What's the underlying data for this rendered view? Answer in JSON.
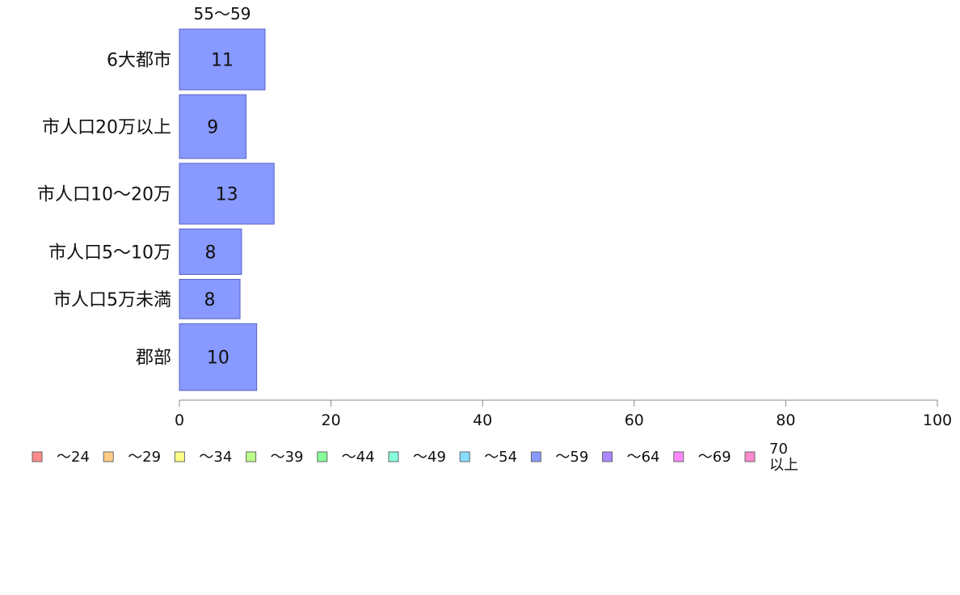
{
  "chart_data": {
    "type": "bar",
    "orientation": "horizontal",
    "stacked": true,
    "categories": [
      "6大都市",
      "市人口20万以上",
      "市人口10〜20万",
      "市人口5〜10万",
      "市人口5万未満",
      "郡部"
    ],
    "series": [
      {
        "name": "〜24",
        "color": "#ff8a8a",
        "values": [
          0,
          0,
          0,
          0,
          0,
          0
        ]
      },
      {
        "name": "〜29",
        "color": "#ffcc88",
        "values": [
          0,
          0,
          0,
          0,
          0,
          0
        ]
      },
      {
        "name": "〜34",
        "color": "#ffff88",
        "values": [
          0,
          0,
          0,
          0,
          0,
          0
        ]
      },
      {
        "name": "〜39",
        "color": "#bbff88",
        "values": [
          0,
          0,
          0,
          0,
          0,
          0
        ]
      },
      {
        "name": "〜44",
        "color": "#88ff99",
        "values": [
          0,
          0,
          0,
          0,
          0,
          0
        ]
      },
      {
        "name": "〜49",
        "color": "#88ffdd",
        "values": [
          0,
          0,
          0,
          0,
          0,
          0
        ]
      },
      {
        "name": "〜54",
        "color": "#88ddff",
        "values": [
          0,
          0,
          0,
          0,
          0,
          0
        ]
      },
      {
        "name": "〜59",
        "color": "#8899ff",
        "values": [
          11.3,
          8.8,
          12.5,
          8.2,
          8.0,
          10.2
        ],
        "labels": [
          "11",
          "9",
          "13",
          "8",
          "8",
          "10"
        ]
      },
      {
        "name": "〜64",
        "color": "#aa88ff",
        "values": [
          0,
          0,
          0,
          0,
          0,
          0
        ]
      },
      {
        "name": "〜69",
        "color": "#ff88ff",
        "values": [
          0,
          0,
          0,
          0,
          0,
          0
        ]
      },
      {
        "name": "70\n以上",
        "color": "#ff88cc",
        "values": [
          0,
          0,
          0,
          0,
          0,
          0
        ]
      }
    ],
    "shown_series_header": "55〜59",
    "row_weights": [
      1.0,
      1.05,
      1.0,
      0.75,
      0.65,
      1.1
    ],
    "xlim": [
      0,
      100
    ],
    "xticks": [
      0,
      20,
      40,
      60,
      80,
      100
    ],
    "grid": false,
    "legend": "bottom-left",
    "title": "",
    "xlabel": "",
    "ylabel": ""
  }
}
